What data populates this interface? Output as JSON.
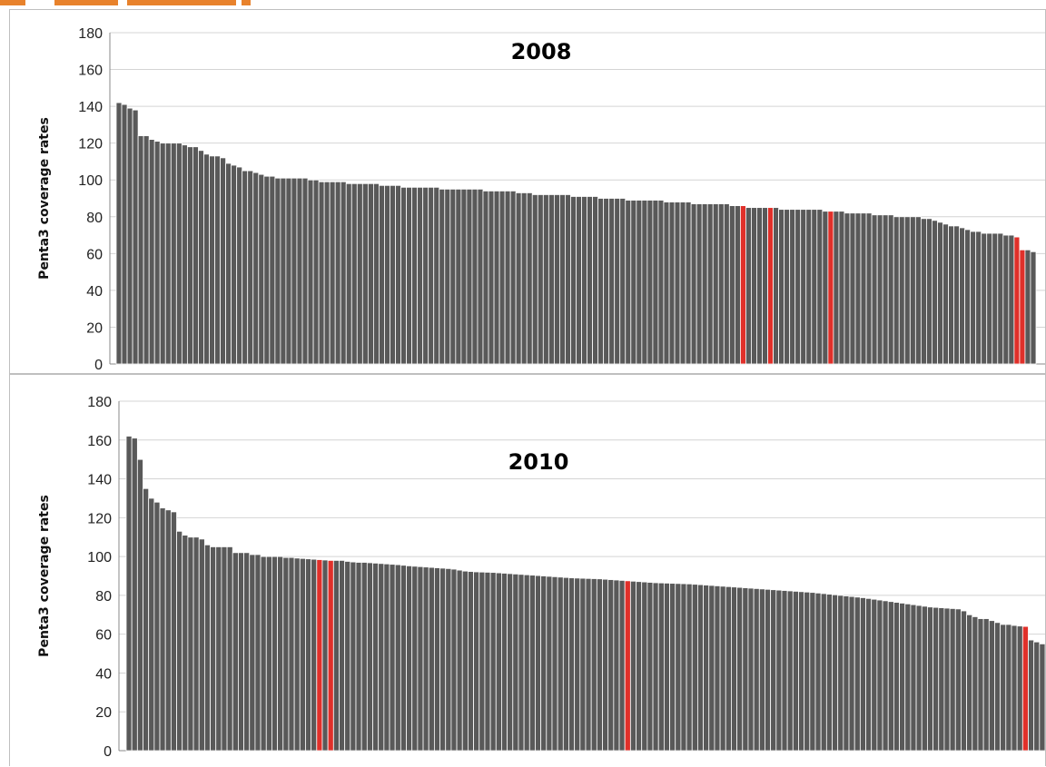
{
  "colors": {
    "bar": "#595959",
    "bar_edge": "#ffffff",
    "highlight": "#e0302a",
    "grid": "#d4d4d4",
    "axis": "#888888",
    "top_strip": "#e8822c"
  },
  "chart_data": [
    {
      "type": "bar",
      "title": "2008",
      "ylabel": "Penta3 coverage rates",
      "xlabel": "",
      "ylim": [
        0,
        180
      ],
      "yticks": [
        "0",
        "20",
        "40",
        "60",
        "80",
        "100",
        "120",
        "140",
        "160",
        "180"
      ],
      "grid": true,
      "values": [
        142,
        141,
        139,
        138,
        124,
        124,
        122,
        121,
        120,
        120,
        120,
        120,
        119,
        118,
        118,
        116,
        114,
        113,
        113,
        112,
        109,
        108,
        107,
        105,
        105,
        104,
        103,
        102,
        102,
        101,
        101,
        101,
        101,
        101,
        101,
        100,
        100,
        99,
        99,
        99,
        99,
        99,
        98,
        98,
        98,
        98,
        98,
        98,
        97,
        97,
        97,
        97,
        96,
        96,
        96,
        96,
        96,
        96,
        96,
        95,
        95,
        95,
        95,
        95,
        95,
        95,
        95,
        94,
        94,
        94,
        94,
        94,
        94,
        93,
        93,
        93,
        92,
        92,
        92,
        92,
        92,
        92,
        92,
        91,
        91,
        91,
        91,
        91,
        90,
        90,
        90,
        90,
        90,
        89,
        89,
        89,
        89,
        89,
        89,
        89,
        88,
        88,
        88,
        88,
        88,
        87,
        87,
        87,
        87,
        87,
        87,
        87,
        86,
        86,
        86,
        85,
        85,
        85,
        85,
        85,
        85,
        84,
        84,
        84,
        84,
        84,
        84,
        84,
        84,
        83,
        83,
        83,
        83,
        82,
        82,
        82,
        82,
        82,
        81,
        81,
        81,
        81,
        80,
        80,
        80,
        80,
        80,
        79,
        79,
        78,
        77,
        76,
        75,
        75,
        74,
        73,
        72,
        72,
        71,
        71,
        71,
        71,
        70,
        70,
        69,
        62,
        62,
        61
      ],
      "highlighted_indices": [
        114,
        119,
        130,
        164,
        165
      ]
    },
    {
      "type": "bar",
      "title": "2010",
      "ylabel": "Penta3 coverage rates",
      "xlabel": "",
      "ylim": [
        0,
        180
      ],
      "yticks": [
        "0",
        "20",
        "40",
        "60",
        "80",
        "100",
        "120",
        "140",
        "160",
        "180"
      ],
      "grid": true,
      "values": [
        162,
        161,
        150,
        135,
        130,
        128,
        125,
        124,
        123,
        113,
        111,
        110,
        110,
        109,
        106,
        105,
        105,
        105,
        105,
        102,
        102,
        102,
        101,
        101,
        100,
        100,
        100,
        100,
        99.5,
        99.5,
        99.2,
        99,
        98.8,
        98.6,
        98.4,
        98.2,
        98,
        98,
        98,
        97.5,
        97.2,
        97,
        97,
        96.8,
        96.6,
        96.4,
        96.2,
        96,
        95.8,
        95.5,
        95.2,
        95,
        94.8,
        94.6,
        94.4,
        94.2,
        94,
        93.8,
        93.5,
        93,
        92.5,
        92.3,
        92.1,
        92,
        91.9,
        91.8,
        91.6,
        91.4,
        91.2,
        91,
        90.8,
        90.6,
        90.4,
        90.2,
        90,
        89.8,
        89.6,
        89.4,
        89.2,
        89,
        88.9,
        88.8,
        88.7,
        88.6,
        88.5,
        88.3,
        88.1,
        87.9,
        87.7,
        87.5,
        87.3,
        87.1,
        86.9,
        86.7,
        86.5,
        86.4,
        86.3,
        86.2,
        86.1,
        86,
        85.9,
        85.7,
        85.5,
        85.3,
        85.1,
        84.9,
        84.7,
        84.5,
        84.3,
        84.1,
        83.9,
        83.7,
        83.5,
        83.3,
        83.1,
        82.9,
        82.7,
        82.5,
        82.3,
        82.1,
        81.9,
        81.7,
        81.5,
        81.2,
        80.9,
        80.6,
        80.3,
        80,
        79.7,
        79.4,
        79.1,
        78.8,
        78.4,
        78,
        77.6,
        77.2,
        76.8,
        76.4,
        76,
        75.6,
        75.2,
        74.8,
        74.4,
        74,
        73.8,
        73.6,
        73.4,
        73.2,
        73,
        72,
        70,
        69,
        68,
        68,
        67,
        66,
        65,
        65,
        64.5,
        64.2,
        64,
        57,
        56,
        55
      ],
      "highlighted_indices": [
        34,
        36,
        89,
        160
      ]
    }
  ]
}
